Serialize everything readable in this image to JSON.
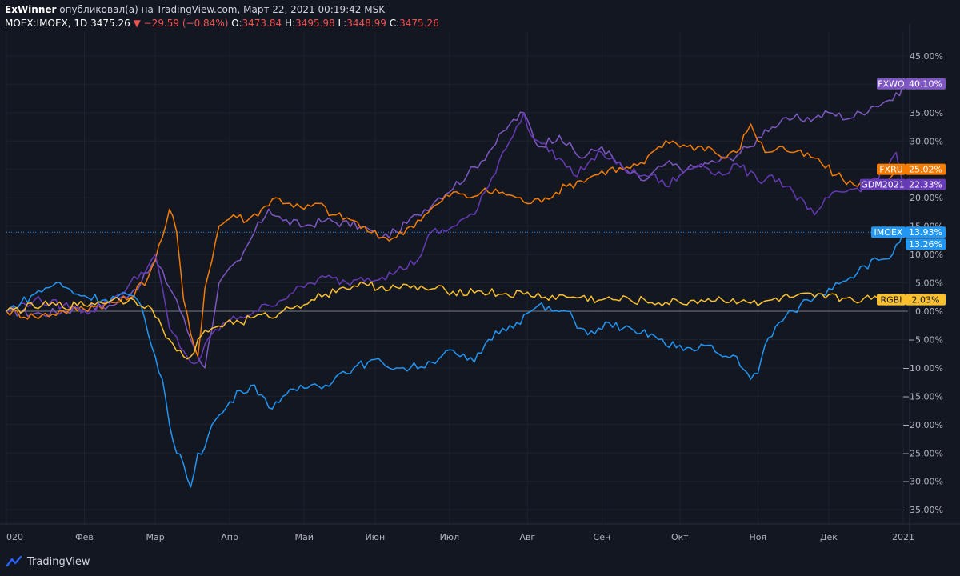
{
  "header": {
    "author": "ExWinner",
    "published_text": "опубликовал(а) на TradingView.com, Март 22, 2021 00:19:42 MSK",
    "symbol": "MOEX:IMOEX, 1D",
    "price": "3475.26",
    "change": "−29.59 (−0.84%)",
    "o_label": "O:",
    "o": "3473.84",
    "h_label": "H:",
    "h": "3495.98",
    "l_label": "L:",
    "l": "3448.99",
    "c_label": "C:",
    "c": "3475.26"
  },
  "footer": {
    "brand": "TradingView"
  },
  "colors": {
    "background": "#131722",
    "grid": "#1e222d",
    "fxwo": "#7e57c2",
    "fxru": "#f57c00",
    "gdm2021": "#673ab7",
    "imoex": "#2196f3",
    "rgbi": "#fbc02d"
  },
  "chart_data": {
    "type": "line",
    "y_unit": "%",
    "ylim": [
      -37,
      47
    ],
    "y_ticks": [
      "45.00%",
      "40.00%",
      "35.00%",
      "30.00%",
      "25.00%",
      "20.00%",
      "15.00%",
      "10.00%",
      "5.00%",
      "0.00%",
      "−5.00%",
      "−10.00%",
      "−15.00%",
      "−20.00%",
      "−25.00%",
      "−30.00%",
      "−35.00%"
    ],
    "y_tick_values": [
      45,
      40,
      35,
      30,
      25,
      20,
      15,
      10,
      5,
      0,
      -5,
      -10,
      -15,
      -20,
      -25,
      -30,
      -35
    ],
    "x_tick_labels": [
      "020",
      "Фев",
      "Мар",
      "Апр",
      "Май",
      "Июн",
      "Июл",
      "Авг",
      "Сен",
      "Окт",
      "Ноя",
      "Дек",
      "2021"
    ],
    "x_tick_index": [
      0,
      22,
      42,
      63,
      84,
      104,
      125,
      147,
      168,
      190,
      212,
      232,
      253
    ],
    "x_count": 254,
    "grid": true,
    "series": [
      {
        "name": "FXWO",
        "color": "#7e57c2",
        "last_label": "40.10%",
        "points": [
          [
            0,
            0
          ],
          [
            10,
            -0.5
          ],
          [
            20,
            0.5
          ],
          [
            30,
            1
          ],
          [
            38,
            5
          ],
          [
            42,
            9
          ],
          [
            48,
            2
          ],
          [
            52,
            -5
          ],
          [
            56,
            -10
          ],
          [
            60,
            5
          ],
          [
            66,
            9
          ],
          [
            70,
            14
          ],
          [
            74,
            18
          ],
          [
            78,
            16
          ],
          [
            84,
            15
          ],
          [
            90,
            16
          ],
          [
            100,
            15
          ],
          [
            106,
            13
          ],
          [
            110,
            14
          ],
          [
            116,
            17
          ],
          [
            122,
            20
          ],
          [
            130,
            24
          ],
          [
            136,
            28
          ],
          [
            142,
            33
          ],
          [
            146,
            35
          ],
          [
            150,
            29
          ],
          [
            156,
            31
          ],
          [
            162,
            27
          ],
          [
            168,
            29
          ],
          [
            174,
            25
          ],
          [
            180,
            23
          ],
          [
            186,
            26
          ],
          [
            192,
            25
          ],
          [
            198,
            26
          ],
          [
            204,
            27
          ],
          [
            210,
            29
          ],
          [
            214,
            32
          ],
          [
            218,
            33
          ],
          [
            222,
            34
          ],
          [
            228,
            34
          ],
          [
            232,
            35
          ],
          [
            238,
            34
          ],
          [
            244,
            36
          ],
          [
            248,
            37
          ],
          [
            252,
            38
          ],
          [
            253,
            40.1
          ]
        ]
      },
      {
        "name": "FXRU",
        "color": "#f57c00",
        "last_label": "25.02%",
        "points": [
          [
            0,
            0
          ],
          [
            8,
            -1
          ],
          [
            16,
            0
          ],
          [
            26,
            1
          ],
          [
            34,
            2
          ],
          [
            40,
            6
          ],
          [
            44,
            13
          ],
          [
            46,
            18
          ],
          [
            48,
            14
          ],
          [
            50,
            2
          ],
          [
            52,
            -4
          ],
          [
            54,
            -8
          ],
          [
            56,
            4
          ],
          [
            60,
            15
          ],
          [
            64,
            17
          ],
          [
            68,
            16
          ],
          [
            72,
            18
          ],
          [
            76,
            20
          ],
          [
            80,
            19
          ],
          [
            84,
            18
          ],
          [
            88,
            19
          ],
          [
            92,
            17
          ],
          [
            98,
            16
          ],
          [
            102,
            14
          ],
          [
            106,
            13
          ],
          [
            110,
            13
          ],
          [
            114,
            15
          ],
          [
            118,
            17
          ],
          [
            122,
            19
          ],
          [
            126,
            21
          ],
          [
            130,
            20
          ],
          [
            134,
            21
          ],
          [
            140,
            21
          ],
          [
            144,
            20
          ],
          [
            148,
            19
          ],
          [
            152,
            20
          ],
          [
            158,
            22
          ],
          [
            162,
            23
          ],
          [
            166,
            24
          ],
          [
            170,
            25
          ],
          [
            174,
            25
          ],
          [
            180,
            26
          ],
          [
            184,
            29
          ],
          [
            188,
            30
          ],
          [
            192,
            29
          ],
          [
            198,
            29
          ],
          [
            202,
            27
          ],
          [
            206,
            28
          ],
          [
            210,
            33
          ],
          [
            214,
            28
          ],
          [
            218,
            29
          ],
          [
            222,
            28
          ],
          [
            228,
            27
          ],
          [
            234,
            24
          ],
          [
            240,
            22
          ],
          [
            246,
            23
          ],
          [
            250,
            24
          ],
          [
            253,
            25.02
          ]
        ]
      },
      {
        "name": "GDM2021",
        "color": "#673ab7",
        "last_label": "22.33%",
        "points": [
          [
            0,
            0
          ],
          [
            8,
            2
          ],
          [
            16,
            1
          ],
          [
            24,
            0
          ],
          [
            32,
            3
          ],
          [
            40,
            8
          ],
          [
            42,
            10
          ],
          [
            46,
            -3
          ],
          [
            50,
            -7
          ],
          [
            52,
            -9
          ],
          [
            54,
            -9
          ],
          [
            58,
            -4
          ],
          [
            62,
            -2
          ],
          [
            66,
            -1
          ],
          [
            70,
            0
          ],
          [
            74,
            1
          ],
          [
            80,
            3
          ],
          [
            86,
            5
          ],
          [
            90,
            6
          ],
          [
            96,
            5
          ],
          [
            100,
            6
          ],
          [
            106,
            6
          ],
          [
            110,
            7
          ],
          [
            116,
            9
          ],
          [
            120,
            14
          ],
          [
            124,
            14
          ],
          [
            128,
            16
          ],
          [
            132,
            17
          ],
          [
            136,
            22
          ],
          [
            140,
            28
          ],
          [
            142,
            30
          ],
          [
            146,
            35
          ],
          [
            148,
            31
          ],
          [
            150,
            30
          ],
          [
            156,
            27
          ],
          [
            160,
            24
          ],
          [
            164,
            26
          ],
          [
            168,
            28
          ],
          [
            172,
            26
          ],
          [
            178,
            24
          ],
          [
            182,
            24
          ],
          [
            186,
            22
          ],
          [
            190,
            24
          ],
          [
            196,
            26
          ],
          [
            202,
            24
          ],
          [
            206,
            26
          ],
          [
            212,
            23
          ],
          [
            216,
            24
          ],
          [
            222,
            21
          ],
          [
            226,
            18
          ],
          [
            228,
            17
          ],
          [
            232,
            20
          ],
          [
            236,
            21
          ],
          [
            242,
            22
          ],
          [
            248,
            25
          ],
          [
            251,
            28
          ],
          [
            253,
            22.33
          ]
        ]
      },
      {
        "name": "IMOEX",
        "color": "#2196f3",
        "last_label": "13.93%",
        "points": [
          [
            0,
            0
          ],
          [
            8,
            3
          ],
          [
            14,
            5
          ],
          [
            20,
            3
          ],
          [
            28,
            2
          ],
          [
            34,
            3
          ],
          [
            38,
            1
          ],
          [
            40,
            -4
          ],
          [
            42,
            -8
          ],
          [
            44,
            -12
          ],
          [
            46,
            -20
          ],
          [
            48,
            -25
          ],
          [
            50,
            -27
          ],
          [
            52,
            -31
          ],
          [
            54,
            -25
          ],
          [
            56,
            -24
          ],
          [
            58,
            -20
          ],
          [
            62,
            -17
          ],
          [
            66,
            -14
          ],
          [
            70,
            -13
          ],
          [
            74,
            -17
          ],
          [
            78,
            -15
          ],
          [
            82,
            -14
          ],
          [
            86,
            -13
          ],
          [
            90,
            -13
          ],
          [
            94,
            -11
          ],
          [
            98,
            -10
          ],
          [
            102,
            -9
          ],
          [
            106,
            -9
          ],
          [
            110,
            -10
          ],
          [
            114,
            -10
          ],
          [
            120,
            -9
          ],
          [
            124,
            -7
          ],
          [
            128,
            -8
          ],
          [
            132,
            -9
          ],
          [
            136,
            -5
          ],
          [
            140,
            -3
          ],
          [
            144,
            -2
          ],
          [
            148,
            0
          ],
          [
            150,
            1
          ],
          [
            154,
            0
          ],
          [
            158,
            0
          ],
          [
            162,
            -3
          ],
          [
            166,
            -4
          ],
          [
            170,
            -2
          ],
          [
            174,
            -3
          ],
          [
            178,
            -4
          ],
          [
            182,
            -4
          ],
          [
            186,
            -6
          ],
          [
            190,
            -6
          ],
          [
            194,
            -7
          ],
          [
            198,
            -6
          ],
          [
            202,
            -8
          ],
          [
            206,
            -8
          ],
          [
            210,
            -12
          ],
          [
            212,
            -11
          ],
          [
            214,
            -6
          ],
          [
            218,
            -2
          ],
          [
            222,
            0
          ],
          [
            226,
            2
          ],
          [
            230,
            3
          ],
          [
            234,
            5
          ],
          [
            238,
            6
          ],
          [
            242,
            8
          ],
          [
            246,
            9
          ],
          [
            250,
            10
          ],
          [
            253,
            13.93
          ]
        ]
      },
      {
        "name": "RGBI",
        "color": "#fbc02d",
        "last_label": "2.03%",
        "points": [
          [
            0,
            0
          ],
          [
            10,
            1
          ],
          [
            20,
            1
          ],
          [
            30,
            2
          ],
          [
            36,
            2
          ],
          [
            40,
            1
          ],
          [
            42,
            -1
          ],
          [
            44,
            -3
          ],
          [
            46,
            -5
          ],
          [
            48,
            -7
          ],
          [
            50,
            -8
          ],
          [
            52,
            -8
          ],
          [
            54,
            -5
          ],
          [
            58,
            -3
          ],
          [
            62,
            -2
          ],
          [
            66,
            -2
          ],
          [
            70,
            -1
          ],
          [
            74,
            -1
          ],
          [
            78,
            0
          ],
          [
            82,
            1
          ],
          [
            86,
            2
          ],
          [
            90,
            3
          ],
          [
            94,
            4
          ],
          [
            98,
            4.5
          ],
          [
            102,
            4.5
          ],
          [
            110,
            4.2
          ],
          [
            118,
            4
          ],
          [
            126,
            3.5
          ],
          [
            134,
            3.5
          ],
          [
            140,
            3
          ],
          [
            146,
            3
          ],
          [
            152,
            2.5
          ],
          [
            160,
            2.5
          ],
          [
            168,
            2
          ],
          [
            176,
            2
          ],
          [
            184,
            1.5
          ],
          [
            190,
            1.5
          ],
          [
            196,
            2
          ],
          [
            202,
            2
          ],
          [
            208,
            2
          ],
          [
            212,
            1
          ],
          [
            216,
            2
          ],
          [
            222,
            2.5
          ],
          [
            228,
            2.5
          ],
          [
            236,
            2.3
          ],
          [
            244,
            2.1
          ],
          [
            253,
            2.03
          ]
        ]
      }
    ],
    "price_labels": [
      {
        "name": "FXWO",
        "value": 40.1,
        "text": "40.10%",
        "color": "#7e57c2"
      },
      {
        "name": "FXRU",
        "value": 25.02,
        "text": "25.02%",
        "color": "#f57c00"
      },
      {
        "name": "GDM2021",
        "value": 22.33,
        "text": "22.33%",
        "color": "#673ab7"
      },
      {
        "name": "IMOEX",
        "value": 13.93,
        "text": "13.93%",
        "color": "#2196f3"
      },
      {
        "name": "",
        "value": 13.26,
        "text": "13.26%",
        "color": "#2196f3"
      },
      {
        "name": "RGBI",
        "value": 2.03,
        "text": "2.03%",
        "color": "#fbc02d"
      }
    ],
    "hline_value": 13.93
  }
}
